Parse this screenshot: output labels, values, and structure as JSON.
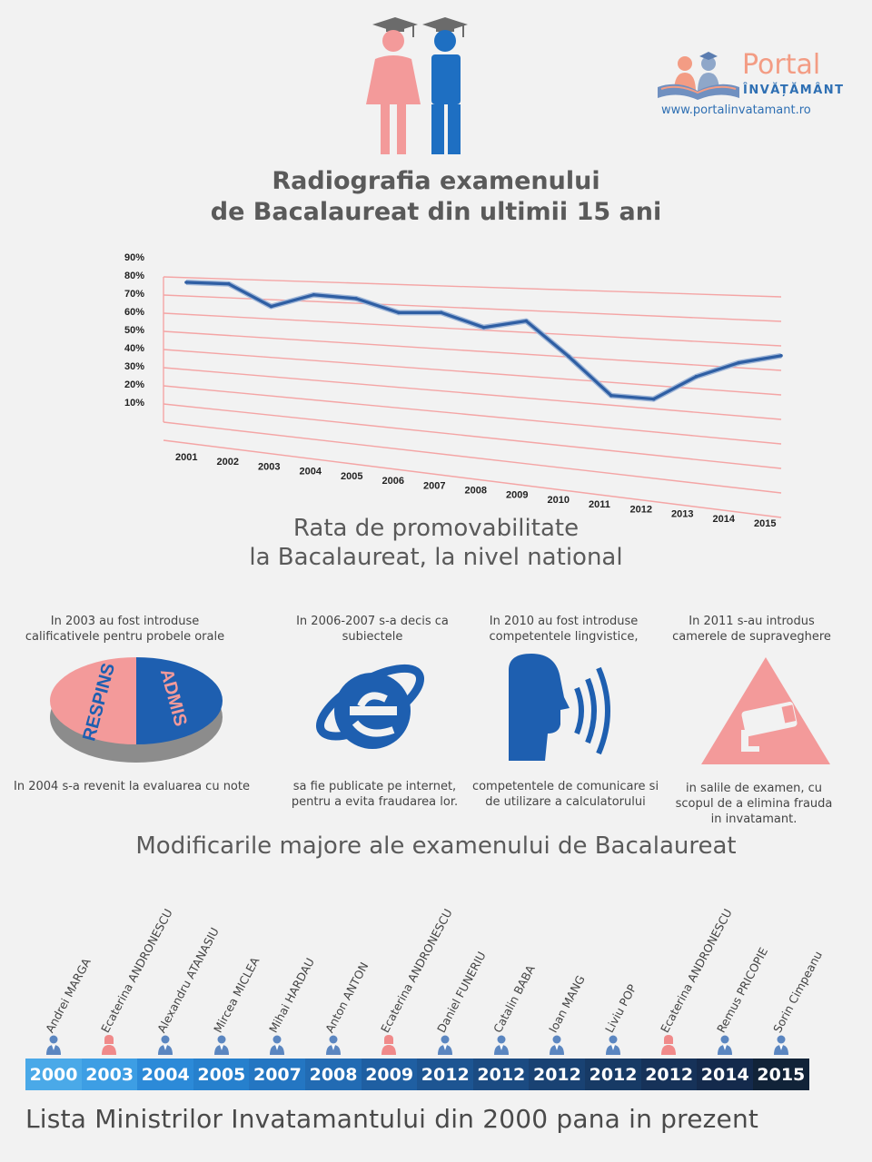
{
  "logo": {
    "portal": "Portal",
    "invatamant": "ÎNVĂȚĂMÂNT",
    "url": "www.portalinvatamant.ro"
  },
  "title": {
    "line1": "Radiografia examenului",
    "line2": "de Bacalaureat din ultimii 15 ani"
  },
  "chart_data": {
    "type": "line",
    "categories": [
      "2001",
      "2002",
      "2003",
      "2004",
      "2005",
      "2006",
      "2007",
      "2008",
      "2009",
      "2010",
      "2011",
      "2012",
      "2013",
      "2014",
      "2015"
    ],
    "values": [
      87,
      87,
      76,
      83,
      82,
      76,
      77,
      71,
      75,
      60,
      44,
      44,
      55,
      62,
      66
    ],
    "yticks": [
      "10%",
      "20%",
      "30%",
      "40%",
      "50%",
      "60%",
      "70%",
      "80%",
      "90%"
    ],
    "ylim": [
      0,
      95
    ],
    "grid": true,
    "line_color": "#2e5ea3",
    "grid_color": "#f4a5a5"
  },
  "chart_subtitle": {
    "line1": "Rata de promovabilitate",
    "line2": "la Bacalaureat, la nivel national"
  },
  "changes": {
    "c1": {
      "top": "In 2003 au fost introduse calificativele pentru probele orale",
      "bottom": "In 2004 s-a revenit la evaluarea cu note",
      "pie_left": "RESPINS",
      "pie_right": "ADMIS"
    },
    "c2": {
      "top": "In 2006-2007 s-a decis ca subiectele",
      "bottom": "sa fie publicate pe internet, pentru a evita fraudarea lor."
    },
    "c3": {
      "top": "In 2010 au fost introduse competentele lingvistice,",
      "bottom": "competentele de comunicare si de utilizare a calculatorului"
    },
    "c4": {
      "top": "In 2011 s-au introdus camerele de supraveghere",
      "bottom": "in salile de examen, cu scopul de a elimina frauda in invatamant."
    }
  },
  "section_title": "Modificarile majore ale examenului de Bacalaureat",
  "ministers": [
    {
      "name": "Andrei MARGA",
      "year": "2000",
      "gender": "m",
      "color": "#4aa9e8"
    },
    {
      "name": "Ecaterina ANDRONESCU",
      "year": "2003",
      "gender": "f",
      "color": "#3d9ee4"
    },
    {
      "name": "Alexandru ATANASIU",
      "year": "2004",
      "gender": "m",
      "color": "#2c8ad8"
    },
    {
      "name": "Mircea MICLEA",
      "year": "2005",
      "gender": "m",
      "color": "#2680cd"
    },
    {
      "name": "Mihai HARDAU",
      "year": "2007",
      "gender": "m",
      "color": "#2476c2"
    },
    {
      "name": "Anton ANTON",
      "year": "2008",
      "gender": "m",
      "color": "#226bb3"
    },
    {
      "name": "Ecaterina ANDRONESCU",
      "year": "2009",
      "gender": "f",
      "color": "#1f5fa2"
    },
    {
      "name": "Daniel FUNERIU",
      "year": "2012",
      "gender": "m",
      "color": "#1d5592"
    },
    {
      "name": "Catalin BABA",
      "year": "2012",
      "gender": "m",
      "color": "#1b4b82"
    },
    {
      "name": "Ioan MANG",
      "year": "2012",
      "gender": "m",
      "color": "#194273"
    },
    {
      "name": "Liviu POP",
      "year": "2012",
      "gender": "m",
      "color": "#173a65"
    },
    {
      "name": "Ecaterina ANDRONESCU",
      "year": "2012",
      "gender": "f",
      "color": "#163259"
    },
    {
      "name": "Remus PRICOPIE",
      "year": "2014",
      "gender": "m",
      "color": "#142a4c"
    },
    {
      "name": "Sorin Cimpeanu",
      "year": "2015",
      "gender": "m",
      "color": "#112338"
    }
  ],
  "timeline_title": "Lista Ministrilor Invatamantului din 2000 pana in prezent"
}
